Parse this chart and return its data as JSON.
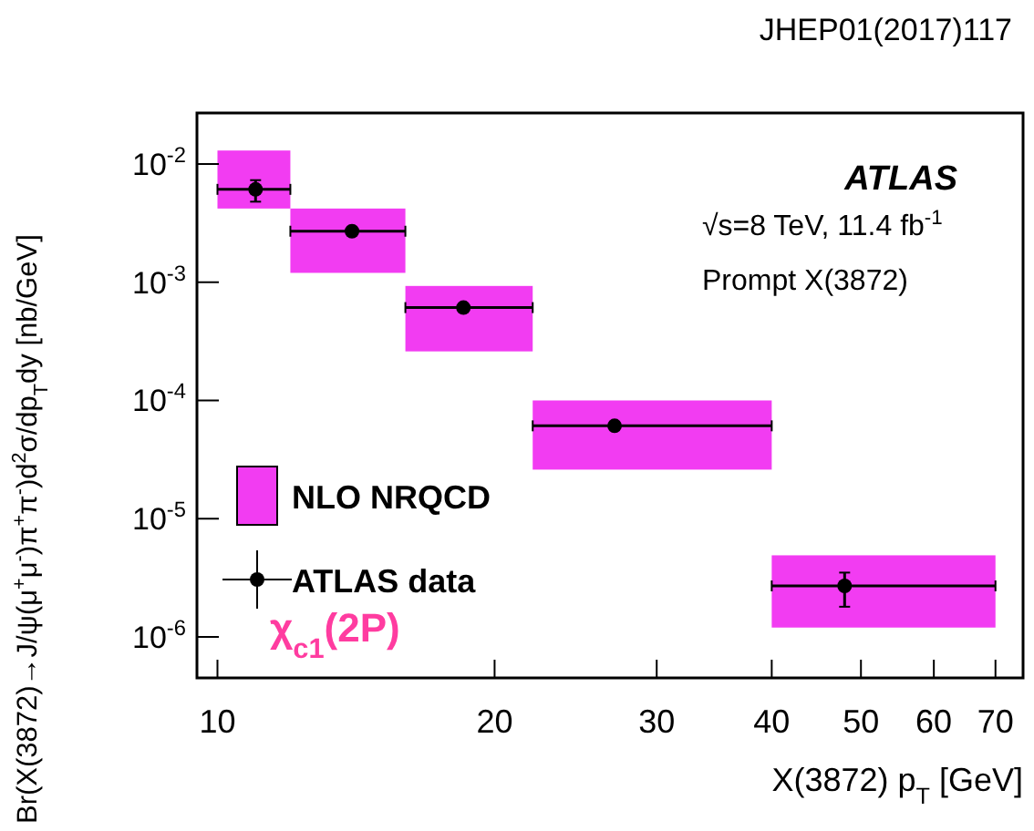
{
  "chart_data": {
    "type": "scatter",
    "xlabel": "X(3872) p$_{T}$ [GeV]",
    "ylabel": "Br(X(3872)→J/ψ(μ$^{+}$μ$^{-}$)π$^{+}$π$^{-}$)d$^{2}$σ/dp$_{T}$dy [nb/GeV]",
    "log": "xy",
    "xlim": [
      9.5,
      75
    ],
    "ylim": [
      4.5e-07,
      0.027
    ],
    "xticks": [
      10,
      20,
      30,
      40,
      50,
      60,
      70
    ],
    "yticks": [
      {
        "value": 1e-06,
        "label": "10$^{-6}$"
      },
      {
        "value": 1e-05,
        "label": "10$^{-5}$"
      },
      {
        "value": 0.0001,
        "label": "10$^{-4}$"
      },
      {
        "value": 0.001,
        "label": "10$^{-3}$"
      },
      {
        "value": 0.01,
        "label": "10$^{-2}$"
      }
    ],
    "legend": "bottom left",
    "grid": false,
    "series": [
      {
        "name": "NLO NRQCD",
        "type": "histogram",
        "color": "#f23cf2",
        "bins": [
          10,
          12,
          16,
          22,
          40,
          70
        ],
        "base": [
          0.0042,
          0.0012,
          0.00026,
          2.6e-05,
          1.2e-06
        ],
        "values": [
          0.0088,
          0.003,
          0.00067,
          7.4e-05,
          3.7e-06
        ]
      },
      {
        "name": "ATLAS data",
        "type": "scatter",
        "color": "#000000",
        "marker": "circle",
        "x": [
          11,
          14,
          18.5,
          27,
          48
        ],
        "values": [
          0.0061,
          0.0027,
          0.00061,
          6.1e-05,
          2.7e-06
        ],
        "errors": [
          [
            0.0048,
            0.0073
          ],
          null,
          null,
          null,
          [
            1.8e-06,
            3.5e-06
          ]
        ],
        "xerrors": [
          [
            10,
            12
          ],
          [
            12,
            16
          ],
          [
            16,
            22
          ],
          [
            22,
            40
          ],
          [
            40,
            70
          ]
        ]
      }
    ],
    "annotations": [
      "JHEP01(2017)117",
      "ATLAS",
      "√s=8 TeV, 11.4 fb$^{-1}$",
      "Prompt X(3872)",
      "χ$_{c1}$(2P)"
    ]
  }
}
